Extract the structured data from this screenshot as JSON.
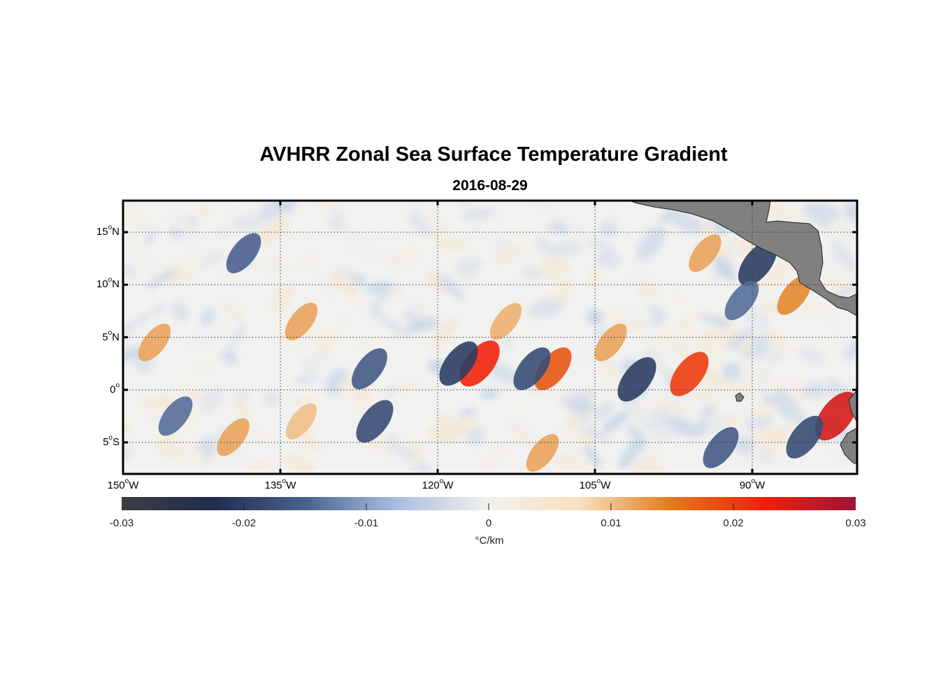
{
  "title": "AVHRR Zonal Sea Surface Temperature Gradient",
  "date": "2016-08-29",
  "map": {
    "lon_range": [
      -150,
      -80
    ],
    "lat_range": [
      -8,
      18
    ],
    "lat_ticks": [
      {
        "value": 15,
        "deg": "15",
        "suffix": "N"
      },
      {
        "value": 10,
        "deg": "10",
        "suffix": "N"
      },
      {
        "value": 5,
        "deg": "5",
        "suffix": "N"
      },
      {
        "value": 0,
        "deg": "0",
        "suffix": ""
      },
      {
        "value": -5,
        "deg": "5",
        "suffix": "S"
      }
    ],
    "lon_ticks": [
      {
        "value": -150,
        "deg": "150",
        "suffix": "W"
      },
      {
        "value": -135,
        "deg": "135",
        "suffix": "W"
      },
      {
        "value": -120,
        "deg": "120",
        "suffix": "W"
      },
      {
        "value": -105,
        "deg": "105",
        "suffix": "W"
      },
      {
        "value": -90,
        "deg": "90",
        "suffix": "W"
      }
    ],
    "land_color": "#808080"
  },
  "colorbar": {
    "min": -0.03,
    "max": 0.03,
    "tick_labels": [
      "-0.03",
      "-0.02",
      "-0.01",
      "0",
      "0.01",
      "0.02",
      "0.03"
    ],
    "units": "°C/km",
    "stops": [
      "#3b3d42",
      "#1f2d4f",
      "#4a618f",
      "#a9bfe0",
      "#f2f1ec",
      "#f8e0bf",
      "#e07a1a",
      "#f21f0c",
      "#9c1535"
    ]
  },
  "features": [
    {
      "lon": -116.0,
      "lat": 2.5,
      "value": 0.022
    },
    {
      "lon": -118.0,
      "lat": 2.5,
      "value": -0.02
    },
    {
      "lon": -109.0,
      "lat": 2.0,
      "value": 0.018
    },
    {
      "lon": -111.0,
      "lat": 2.0,
      "value": -0.018
    },
    {
      "lon": -133.0,
      "lat": 6.5,
      "value": 0.012
    },
    {
      "lon": -101.0,
      "lat": 1.0,
      "value": -0.02
    },
    {
      "lon": -96.0,
      "lat": 1.5,
      "value": 0.02
    },
    {
      "lon": -82.0,
      "lat": -2.5,
      "value": 0.025
    },
    {
      "lon": -85.0,
      "lat": -4.5,
      "value": -0.018
    },
    {
      "lon": -89.5,
      "lat": 12.0,
      "value": -0.02
    },
    {
      "lon": -86.0,
      "lat": 9.0,
      "value": 0.014
    },
    {
      "lon": -110.0,
      "lat": -6.0,
      "value": 0.012
    },
    {
      "lon": -126.0,
      "lat": -3.0,
      "value": -0.018
    },
    {
      "lon": -139.5,
      "lat": -4.5,
      "value": 0.012
    },
    {
      "lon": -138.5,
      "lat": 13.0,
      "value": -0.015
    },
    {
      "lon": -147.0,
      "lat": 4.5,
      "value": 0.012
    },
    {
      "lon": -126.5,
      "lat": 2.0,
      "value": -0.016
    },
    {
      "lon": -103.5,
      "lat": 4.5,
      "value": 0.012
    },
    {
      "lon": -91.0,
      "lat": 8.5,
      "value": -0.014
    },
    {
      "lon": -93.0,
      "lat": -5.5,
      "value": -0.016
    },
    {
      "lon": -133.0,
      "lat": -3.0,
      "value": 0.01
    },
    {
      "lon": -145.0,
      "lat": -2.5,
      "value": -0.014
    },
    {
      "lon": -94.5,
      "lat": 13.0,
      "value": 0.012
    },
    {
      "lon": -113.5,
      "lat": 6.5,
      "value": 0.011
    }
  ]
}
